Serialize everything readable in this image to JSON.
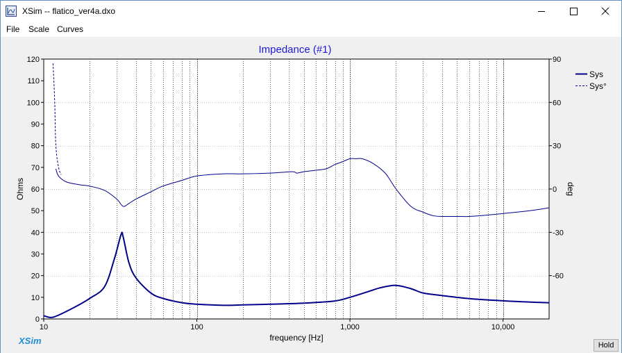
{
  "window": {
    "title": "XSim -- flatico_ver4a.dxo",
    "minimize_icon": "minimize-icon",
    "maximize_icon": "maximize-icon",
    "close_icon": "close-icon"
  },
  "menu": [
    "File",
    "Scale",
    "Curves"
  ],
  "footer": {
    "brand": "XSim",
    "hold_label": "Hold"
  },
  "colors": {
    "curve": "#00008b",
    "title": "#1a1ad6",
    "brand": "#1f8fd6"
  },
  "chart_data": {
    "type": "line",
    "title": "Impedance (#1)",
    "xlabel": "frequency [Hz]",
    "ylabel": "Ohms",
    "y2label": "deg",
    "xscale": "log",
    "xlim": [
      10,
      20000
    ],
    "ylim": [
      0,
      120
    ],
    "y2lim": [
      -90,
      90
    ],
    "xticks": [
      "10",
      "100",
      "1,000",
      "10,000"
    ],
    "yticks": [
      "0",
      "10",
      "20",
      "30",
      "40",
      "50",
      "60",
      "70",
      "80",
      "90",
      "100",
      "110",
      "120"
    ],
    "y2ticks": [
      "-60",
      "-30",
      "0",
      "30",
      "60",
      "90"
    ],
    "grid": true,
    "legend_position": "right",
    "series": [
      {
        "name": "Sys",
        "axis": "left",
        "style": "solid",
        "x": [
          10,
          11.5,
          15,
          20,
          25,
          29,
          32,
          33,
          36,
          40,
          50,
          60,
          80,
          100,
          150,
          200,
          300,
          500,
          800,
          1000,
          1300,
          1600,
          2000,
          2500,
          3000,
          4000,
          6000,
          10000,
          15000,
          20000
        ],
        "y": [
          1.5,
          0.8,
          4.5,
          9.5,
          15,
          28,
          39,
          38,
          26,
          19,
          12,
          9.5,
          7.5,
          6.8,
          6.3,
          6.5,
          6.8,
          7.3,
          8.3,
          10,
          12.5,
          14.5,
          15.5,
          14,
          12,
          10.8,
          9.4,
          8.4,
          7.8,
          7.5
        ]
      },
      {
        "name": "Sys°",
        "axis": "right",
        "style": "dashed",
        "x": [
          11.5,
          11.8,
          12,
          12.5,
          13
        ],
        "y": [
          87,
          60,
          30,
          15,
          10
        ]
      },
      {
        "name": "",
        "axis": "right",
        "style": "solid",
        "x": [
          12,
          12.5,
          14,
          17,
          20,
          25,
          30,
          33,
          36,
          40,
          50,
          60,
          80,
          100,
          150,
          200,
          300,
          420,
          450,
          500,
          600,
          700,
          800,
          900,
          1000,
          1100,
          1200,
          1400,
          1700,
          2000,
          2500,
          3000,
          3500,
          4000,
          5000,
          6000,
          8000,
          10000,
          15000,
          20000
        ],
        "y": [
          14,
          9,
          5,
          3,
          2,
          -1,
          -7,
          -12,
          -10,
          -7,
          -2,
          2,
          6,
          9,
          10.5,
          10.5,
          11,
          12,
          11,
          12,
          13,
          14,
          17,
          19,
          21,
          21,
          21,
          18,
          11,
          0,
          -12,
          -16,
          -18.5,
          -19,
          -19,
          -19,
          -18,
          -17,
          -15,
          -13
        ]
      }
    ]
  }
}
